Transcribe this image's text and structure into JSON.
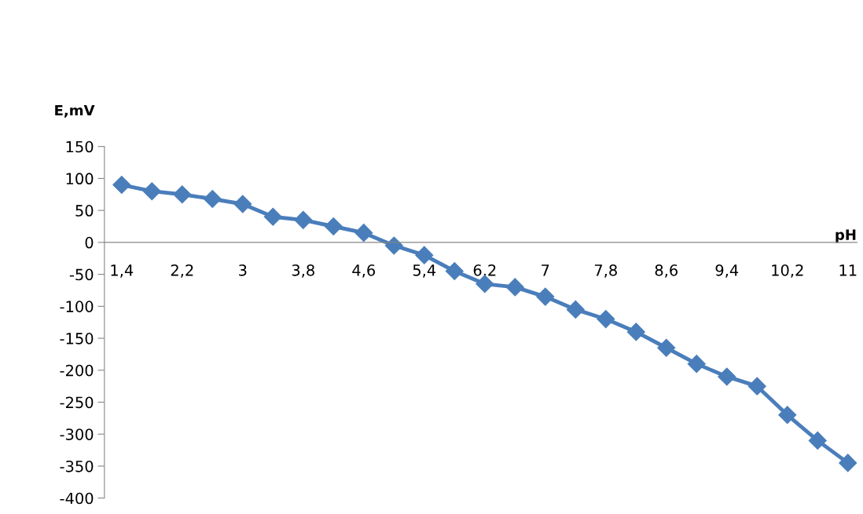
{
  "chart_data": {
    "type": "line",
    "xlabel": "pH",
    "ylabel": "E,mV",
    "categories": [
      "1,4",
      null,
      "2,2",
      null,
      "3",
      null,
      "3,8",
      null,
      "4,6",
      null,
      "5,4",
      null,
      "6,2",
      null,
      "7",
      null,
      "7,8",
      null,
      "8,6",
      null,
      "9,4",
      null,
      "10,2",
      null,
      "11"
    ],
    "series": [
      {
        "color": "#4a7ebb",
        "values": [
          90,
          80,
          75,
          68,
          60,
          40,
          35,
          25,
          15,
          -5,
          -20,
          -45,
          -65,
          -70,
          -85,
          -105,
          -120,
          -140,
          -165,
          -190,
          -210,
          -225,
          -270,
          -310,
          -345
        ]
      }
    ],
    "ylim": [
      -400,
      150
    ],
    "yticks": [
      -400,
      -350,
      -300,
      -250,
      -200,
      -150,
      -100,
      -50,
      0,
      50,
      100,
      150
    ],
    "marker": "diamond",
    "line_style": "solid",
    "grid": false,
    "legend": false
  }
}
